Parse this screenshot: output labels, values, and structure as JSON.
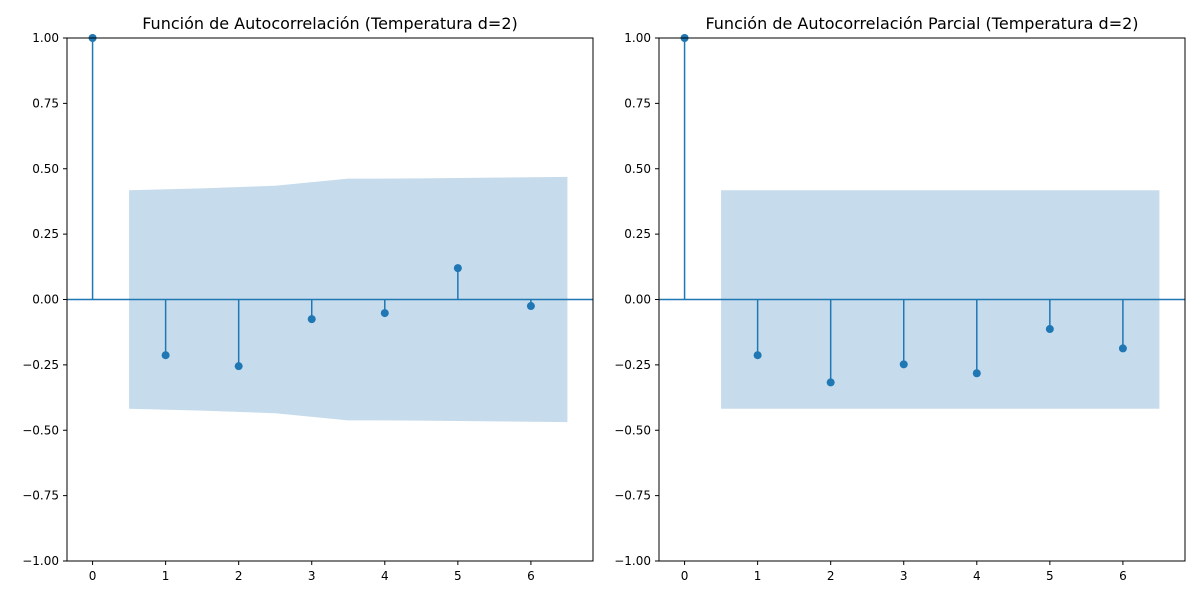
{
  "chart_data": [
    {
      "type": "stem",
      "title": "Función de Autocorrelación (Temperatura d=2)",
      "xlabel": "",
      "ylabel": "",
      "xlim": [
        -0.35,
        6.85
      ],
      "ylim": [
        -1.0,
        1.0
      ],
      "xticks": [
        "0",
        "1",
        "2",
        "3",
        "4",
        "5",
        "6"
      ],
      "yticks": [
        "−1.00",
        "−0.75",
        "−0.50",
        "−0.25",
        "0.00",
        "0.25",
        "0.50",
        "0.75",
        "1.00"
      ],
      "grid": false,
      "legend": "none",
      "series": [
        {
          "x": [
            0,
            1,
            2,
            3,
            4,
            5,
            6
          ],
          "values": [
            1.0,
            -0.213,
            -0.255,
            -0.075,
            -0.052,
            0.12,
            -0.025
          ]
        }
      ],
      "confidence_band": {
        "x": [
          0.5,
          1.5,
          2.5,
          3.5,
          4.5,
          5.5,
          6.5
        ],
        "upper": [
          0.418,
          0.425,
          0.435,
          0.462,
          0.463,
          0.466,
          0.469
        ],
        "lower": [
          -0.418,
          -0.425,
          -0.435,
          -0.462,
          -0.463,
          -0.466,
          -0.469
        ]
      },
      "colors": {
        "stem": "#1f77b4",
        "band": "#c6dbec"
      }
    },
    {
      "type": "stem",
      "title": "Función de Autocorrelación Parcial (Temperatura d=2)",
      "xlabel": "",
      "ylabel": "",
      "xlim": [
        -0.35,
        6.85
      ],
      "ylim": [
        -1.0,
        1.0
      ],
      "xticks": [
        "0",
        "1",
        "2",
        "3",
        "4",
        "5",
        "6"
      ],
      "yticks": [
        "−1.00",
        "−0.75",
        "−0.50",
        "−0.25",
        "0.00",
        "0.25",
        "0.50",
        "0.75",
        "1.00"
      ],
      "grid": false,
      "legend": "none",
      "series": [
        {
          "x": [
            0,
            1,
            2,
            3,
            4,
            5,
            6
          ],
          "values": [
            1.0,
            -0.213,
            -0.317,
            -0.248,
            -0.282,
            -0.113,
            -0.187
          ]
        }
      ],
      "confidence_band": {
        "x": [
          0.5,
          6.5
        ],
        "upper": [
          0.418,
          0.418
        ],
        "lower": [
          -0.418,
          -0.418
        ]
      },
      "colors": {
        "stem": "#1f77b4",
        "band": "#c6dbec"
      }
    }
  ]
}
